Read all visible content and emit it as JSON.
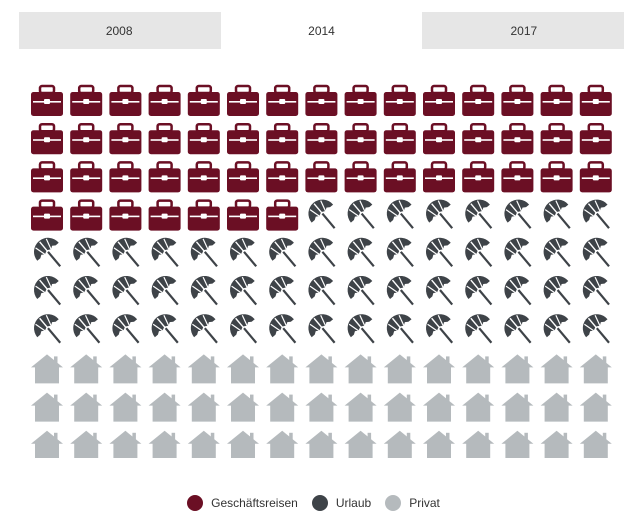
{
  "tabs": [
    "2008",
    "2014",
    "2017"
  ],
  "active_tab": 1,
  "chart_data": {
    "type": "pictogram",
    "total_icons": 150,
    "columns": 15,
    "rows": 10,
    "series": [
      {
        "name": "Geschäftsreisen",
        "count": 52,
        "icon": "briefcase-icon",
        "color": "#6b0f24"
      },
      {
        "name": "Urlaub",
        "count": 53,
        "icon": "umbrella-icon",
        "color": "#3e4348"
      },
      {
        "name": "Privat",
        "count": 45,
        "icon": "house-icon",
        "color": "#b5babd"
      }
    ]
  }
}
